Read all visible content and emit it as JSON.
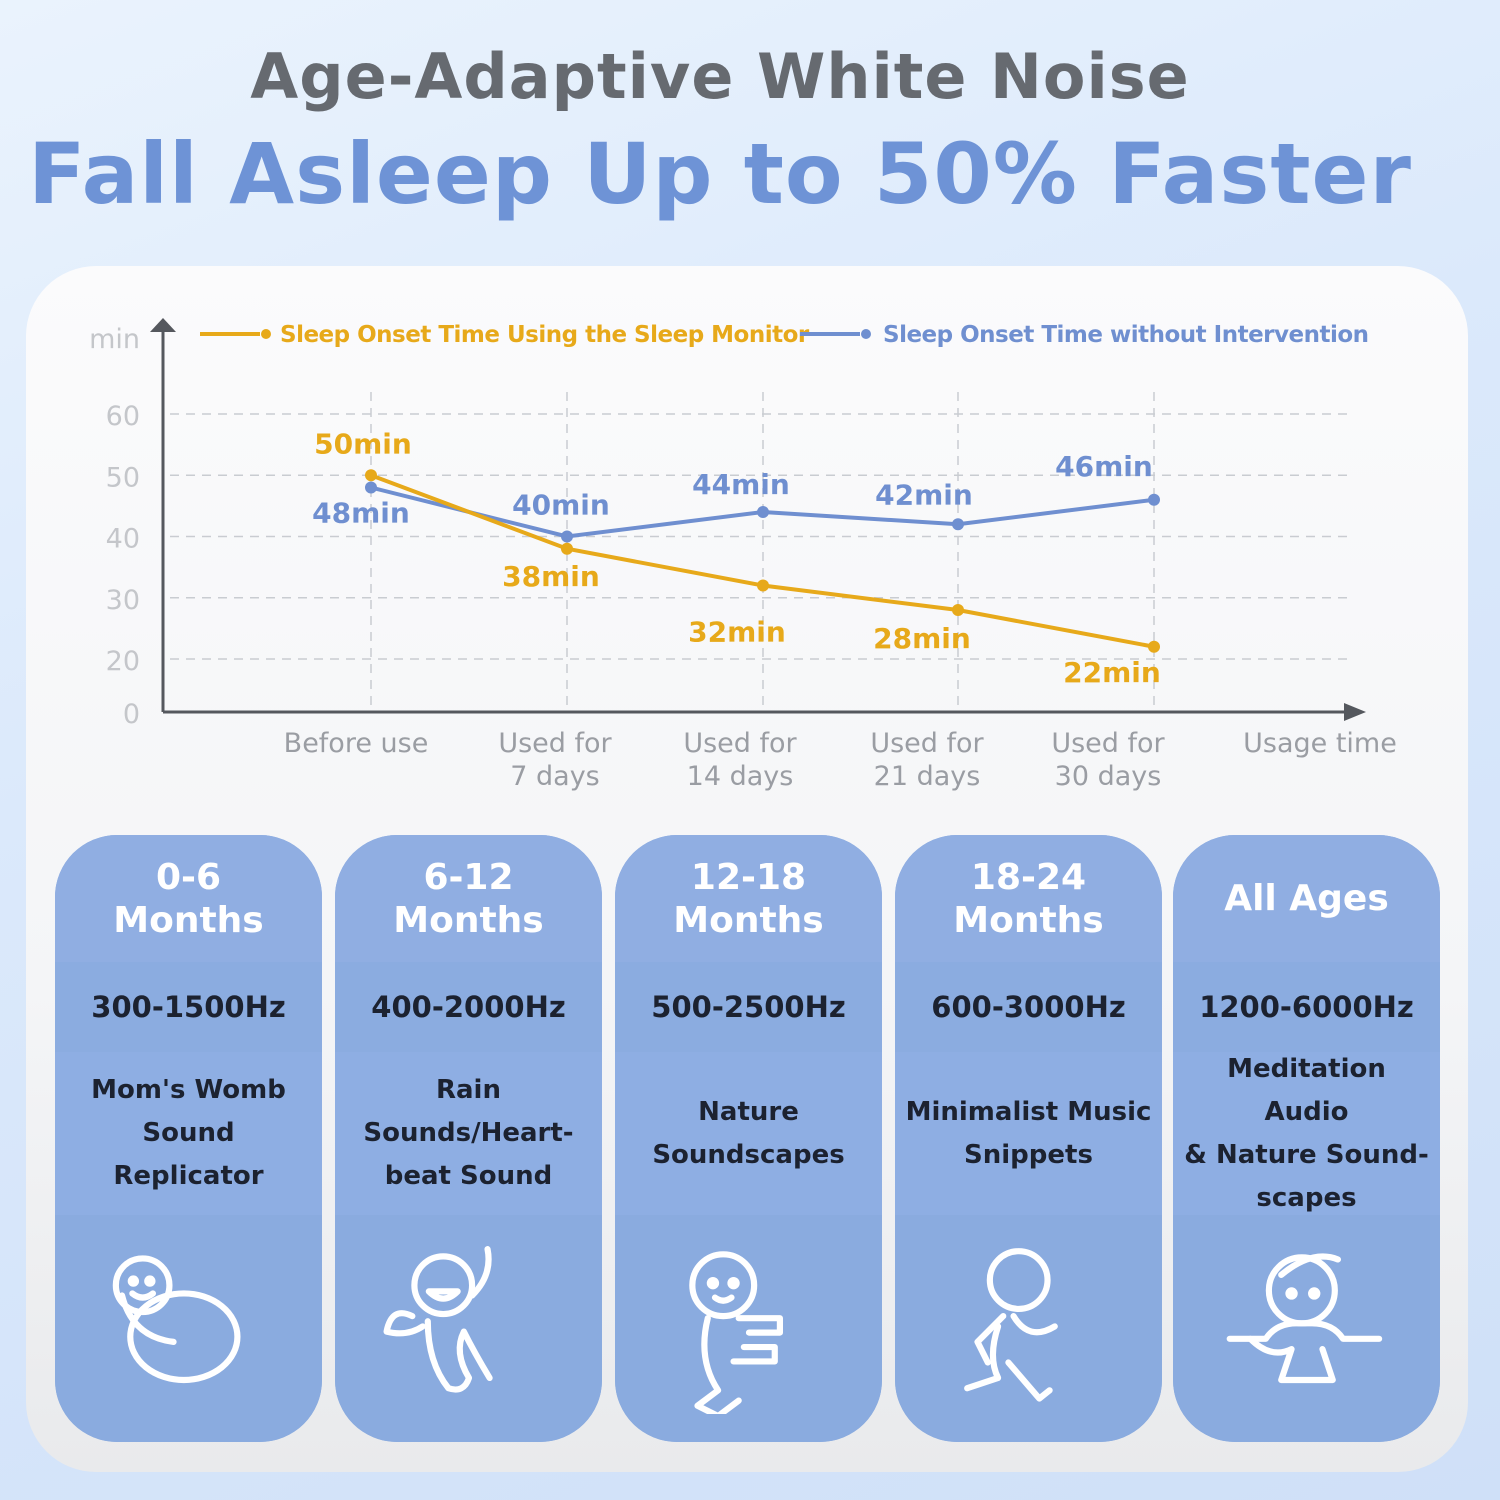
{
  "header": {
    "subtitle": "Age-Adaptive White Noise",
    "title": "Fall Asleep Up to 50% Faster"
  },
  "colors": {
    "orange": "#e7a91a",
    "blue": "#6f8fd0",
    "card": "#8eaee0",
    "title": "#6e93d6"
  },
  "chart_data": {
    "type": "line",
    "ylabel": "min",
    "xlabel": "Usage time",
    "categories": [
      "Before use",
      "Used for 7 days",
      "Used for 14 days",
      "Used for 21 days",
      "Used for 30 days"
    ],
    "category_lines": [
      [
        "Before use"
      ],
      [
        "Used for",
        "7 days"
      ],
      [
        "Used for",
        "14 days"
      ],
      [
        "Used for",
        "21 days"
      ],
      [
        "Used for",
        "30 days"
      ]
    ],
    "yticks": [
      0,
      20,
      30,
      40,
      50,
      60
    ],
    "ylim": [
      0,
      60
    ],
    "grid": true,
    "legend_placement": "top",
    "series": [
      {
        "name": "Sleep Onset Time Using the Sleep Monitor",
        "color": "#e7a91a",
        "values": [
          50,
          38,
          32,
          28,
          22
        ],
        "labels": [
          "50min",
          "38min",
          "32min",
          "28min",
          "22min"
        ]
      },
      {
        "name": "Sleep Onset Time without Intervention",
        "color": "#6f8fd0",
        "values": [
          48,
          40,
          44,
          42,
          46
        ],
        "labels": [
          "48min",
          "40min",
          "44min",
          "42min",
          "46min"
        ]
      }
    ]
  },
  "cards": [
    {
      "age": [
        "0-6",
        "Months"
      ],
      "freq": "300-1500Hz",
      "desc": [
        "Mom's Womb",
        "Sound Replicator"
      ],
      "icon": "swaddled-baby-icon"
    },
    {
      "age": [
        "6-12",
        "Months"
      ],
      "freq": "400-2000Hz",
      "desc": [
        "Rain",
        "Sounds/Heart-",
        "beat Sound"
      ],
      "icon": "happy-baby-icon"
    },
    {
      "age": [
        "12-18",
        "Months"
      ],
      "freq": "500-2500Hz",
      "desc": [
        "Nature",
        "Soundscapes"
      ],
      "icon": "crawling-baby-icon"
    },
    {
      "age": [
        "18-24",
        "Months"
      ],
      "freq": "600-3000Hz",
      "desc": [
        "Minimalist Music",
        "Snippets"
      ],
      "icon": "running-child-icon"
    },
    {
      "age": [
        "All Ages"
      ],
      "freq": "1200-6000Hz",
      "desc": [
        "Meditation Audio",
        "& Nature Sound-",
        "scapes"
      ],
      "icon": "meditating-person-icon"
    }
  ]
}
